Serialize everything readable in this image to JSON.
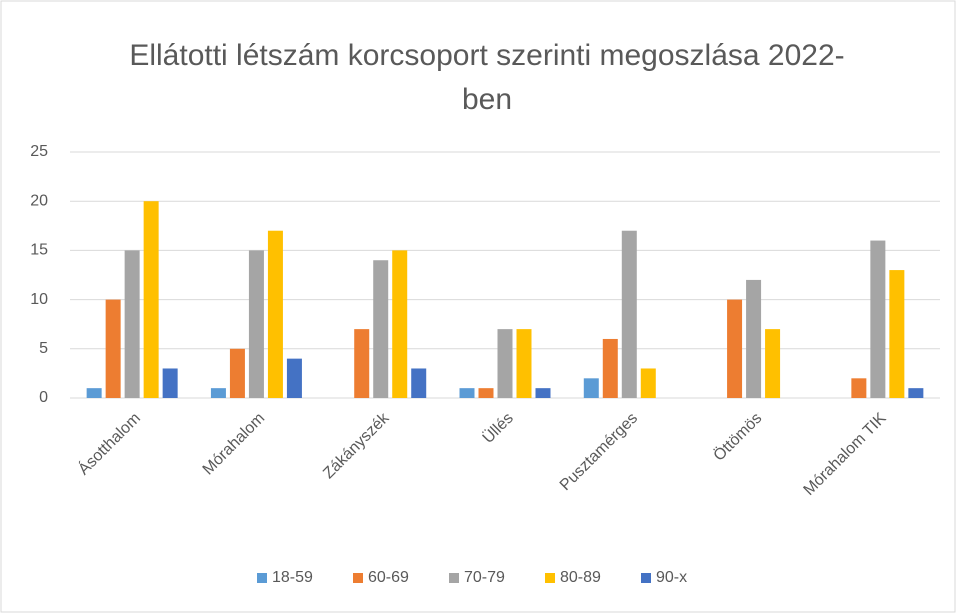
{
  "chart_data": {
    "type": "bar",
    "title": "Ellátotti létszám korcsoport szerinti megoszlása 2022-ben",
    "categories": [
      "Ásotthalom",
      "Mórahalom",
      "Zákányszék",
      "Üllés",
      "Pusztamérges",
      "Öttömös",
      "Mórahalom TIK"
    ],
    "series": [
      {
        "name": "18-59",
        "color": "#5b9bd5",
        "values": [
          1,
          1,
          0,
          1,
          2,
          0,
          0
        ]
      },
      {
        "name": "60-69",
        "color": "#ed7d31",
        "values": [
          10,
          5,
          7,
          1,
          6,
          10,
          2
        ]
      },
      {
        "name": "70-79",
        "color": "#a5a5a5",
        "values": [
          15,
          15,
          14,
          7,
          17,
          12,
          16
        ]
      },
      {
        "name": "80-89",
        "color": "#ffc000",
        "values": [
          20,
          17,
          15,
          7,
          3,
          7,
          13
        ]
      },
      {
        "name": "90-x",
        "color": "#4472c4",
        "values": [
          3,
          4,
          3,
          1,
          0,
          0,
          1
        ]
      }
    ],
    "ylim": [
      0,
      25
    ],
    "yticks": [
      0,
      5,
      10,
      15,
      20,
      25
    ],
    "grid": true,
    "legend": "bottom"
  }
}
